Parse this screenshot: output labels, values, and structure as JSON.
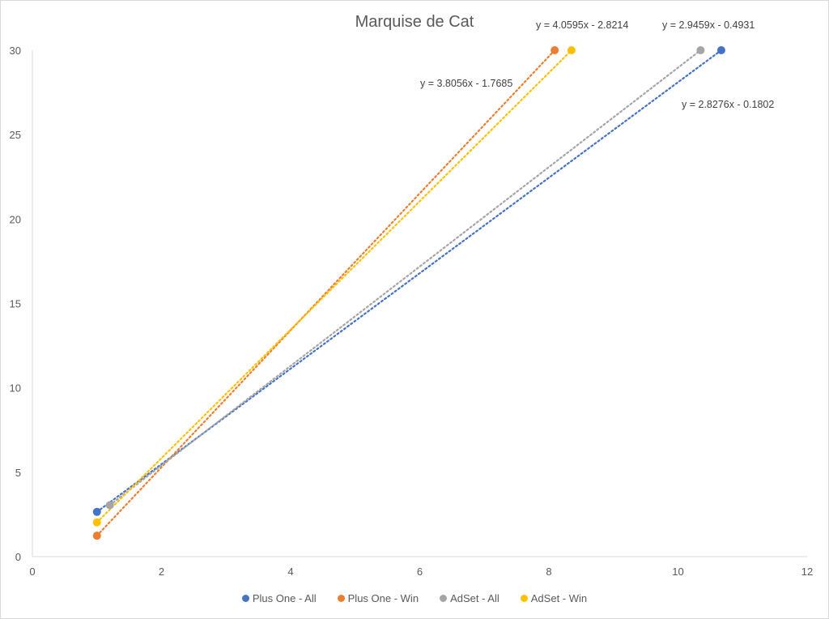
{
  "chart_data": {
    "type": "scatter",
    "title": "Marquise de Cat",
    "xlabel": "",
    "ylabel": "",
    "xlim": [
      0,
      12
    ],
    "ylim": [
      0,
      30
    ],
    "x_ticks": [
      "0",
      "2",
      "4",
      "6",
      "8",
      "10",
      "12"
    ],
    "y_ticks": [
      "0",
      "5",
      "10",
      "15",
      "20",
      "25",
      "30"
    ],
    "grid": false,
    "legend_position": "bottom",
    "series": [
      {
        "name": "Plus One - All",
        "color": "#4472C4",
        "points": [
          [
            1.0,
            2.65
          ],
          [
            10.67,
            30
          ]
        ],
        "trendline": "linear",
        "equation": "y = 2.8276x - 0.1802"
      },
      {
        "name": "Plus One - Win",
        "color": "#ED7D31",
        "points": [
          [
            1.0,
            1.24
          ],
          [
            8.09,
            30
          ]
        ],
        "trendline": "linear",
        "equation": "y = 4.0595x - 2.8214"
      },
      {
        "name": "AdSet - All",
        "color": "#A5A5A5",
        "points": [
          [
            1.2,
            3.05
          ],
          [
            10.35,
            30
          ]
        ],
        "trendline": "linear",
        "equation": "y = 2.9459x - 0.4931"
      },
      {
        "name": "AdSet - Win",
        "color": "#FFC000",
        "points": [
          [
            1.0,
            2.03
          ],
          [
            8.35,
            30
          ]
        ],
        "trendline": "linear",
        "equation": "y = 3.8056x - 1.7685"
      }
    ]
  }
}
